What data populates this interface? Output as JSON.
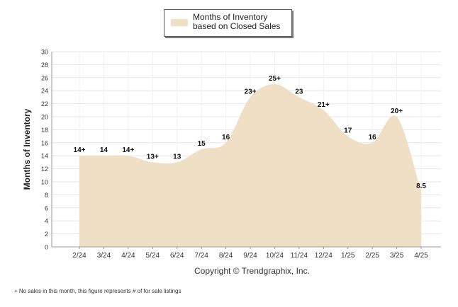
{
  "chart_data": {
    "type": "area",
    "categories": [
      "2/24",
      "3/24",
      "4/24",
      "5/24",
      "6/24",
      "7/24",
      "8/24",
      "9/24",
      "10/24",
      "11/24",
      "12/24",
      "1/25",
      "2/25",
      "3/25",
      "4/25"
    ],
    "series": [
      {
        "name": "Months of Inventory based on Closed Sales",
        "values": [
          14,
          14,
          14,
          13,
          13,
          15,
          16,
          23,
          25,
          23,
          21,
          17,
          16,
          20,
          8.5
        ],
        "labels": [
          "14+",
          "14",
          "14+",
          "13+",
          "13",
          "15",
          "16",
          "23+",
          "25+",
          "23",
          "21+",
          "17",
          "16",
          "20+",
          "8.5"
        ],
        "color": "#efdfc4"
      }
    ],
    "ylabel": "Months of Inventory",
    "ylim": [
      0,
      30
    ],
    "yticks": [
      0,
      2,
      4,
      6,
      8,
      10,
      12,
      14,
      16,
      18,
      20,
      22,
      24,
      26,
      28,
      30
    ],
    "grid": true,
    "legend_position": "top-center"
  },
  "copyright": "Copyright © Trendgraphix, Inc.",
  "footnote": "+  No sales in this month, this figure represents # of for sale listings"
}
